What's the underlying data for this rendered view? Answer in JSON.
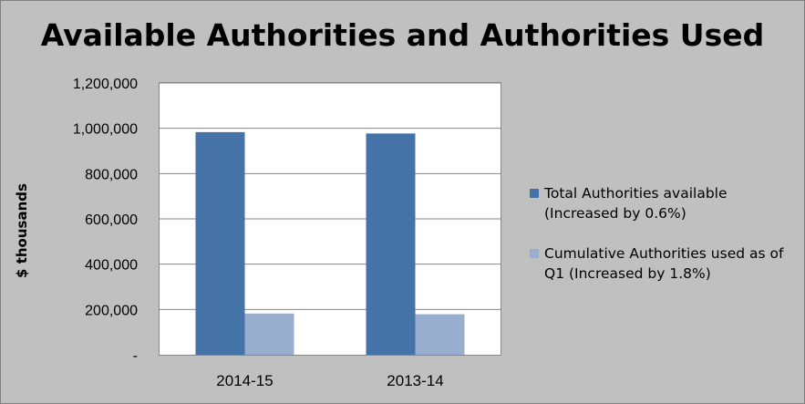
{
  "chart_data": {
    "type": "bar",
    "title": "Available Authorities and Authorities Used",
    "ylabel": "$ thousands",
    "xlabel": "",
    "categories": [
      "2014-15",
      "2013-14"
    ],
    "ylim": [
      0,
      1200000
    ],
    "yticks": [
      0,
      200000,
      400000,
      600000,
      800000,
      1000000,
      1200000
    ],
    "ytick_labels": [
      "-",
      "200,000",
      "400,000",
      "600,000",
      "800,000",
      "1,000,000",
      "1,200,000"
    ],
    "grid": true,
    "legend_position": "right",
    "series": [
      {
        "name": "Total Authorities available (Increased by 0.6%)",
        "color": "#4572a7",
        "values": [
          983000,
          977000
        ]
      },
      {
        "name": "Cumulative Authorities used as of Q1 (Increased by 1.8%)",
        "color": "#99adcf",
        "values": [
          182000,
          179000
        ]
      }
    ]
  }
}
